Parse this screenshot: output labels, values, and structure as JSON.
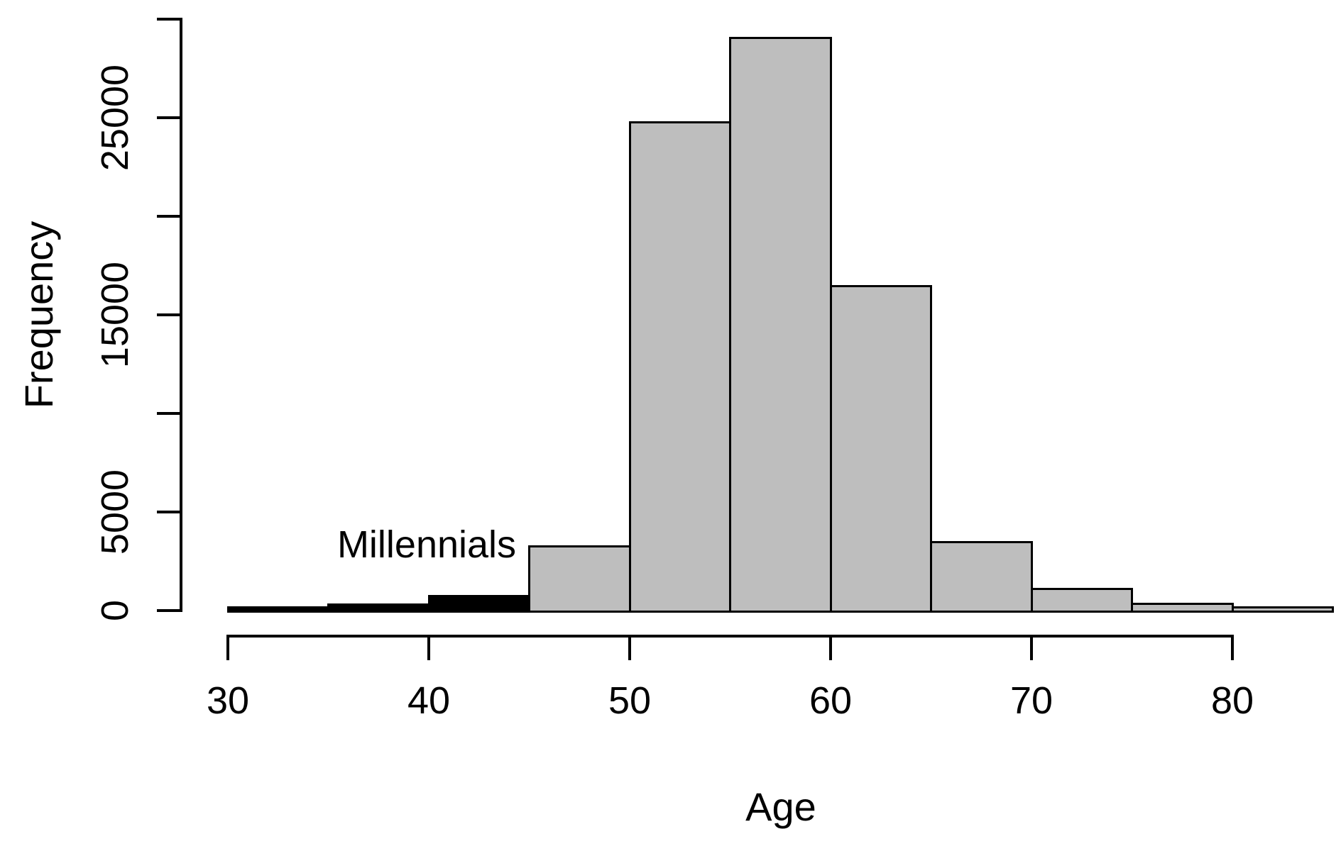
{
  "chart_data": {
    "type": "bar",
    "subtype": "histogram",
    "title": "",
    "xlabel": "Age",
    "ylabel": "Frequency",
    "xlim": [
      30,
      85
    ],
    "ylim": [
      0,
      30000
    ],
    "grid": false,
    "legend": false,
    "background": "#FFFFFF",
    "bar_border_color": "#000000",
    "group_colors": {
      "millennials": "#000000",
      "other": "#BEBEBE"
    },
    "bin_width": 5,
    "bins": [
      {
        "start": 30,
        "end": 35,
        "range": "30-35",
        "frequency": 100,
        "group": "millennials"
      },
      {
        "start": 35,
        "end": 40,
        "range": "35-40",
        "frequency": 250,
        "group": "millennials"
      },
      {
        "start": 40,
        "end": 45,
        "range": "40-45",
        "frequency": 700,
        "group": "millennials"
      },
      {
        "start": 45,
        "end": 50,
        "range": "45-50",
        "frequency": 3200,
        "group": "other"
      },
      {
        "start": 50,
        "end": 55,
        "range": "50-55",
        "frequency": 24700,
        "group": "other"
      },
      {
        "start": 55,
        "end": 60,
        "range": "55-60",
        "frequency": 29000,
        "group": "other"
      },
      {
        "start": 60,
        "end": 65,
        "range": "60-65",
        "frequency": 16400,
        "group": "other"
      },
      {
        "start": 65,
        "end": 70,
        "range": "65-70",
        "frequency": 3400,
        "group": "other"
      },
      {
        "start": 70,
        "end": 75,
        "range": "70-75",
        "frequency": 1050,
        "group": "other"
      },
      {
        "start": 75,
        "end": 80,
        "range": "75-80",
        "frequency": 300,
        "group": "other"
      },
      {
        "start": 80,
        "end": 85,
        "range": "80-85",
        "frequency": 100,
        "group": "other"
      }
    ],
    "x_ticks": [
      {
        "value": 30,
        "label": "30"
      },
      {
        "value": 40,
        "label": "40"
      },
      {
        "value": 50,
        "label": "50"
      },
      {
        "value": 60,
        "label": "60"
      },
      {
        "value": 70,
        "label": "70"
      },
      {
        "value": 80,
        "label": "80"
      }
    ],
    "y_ticks": [
      {
        "value": 0,
        "label": "0"
      },
      {
        "value": 5000,
        "label": "5000"
      },
      {
        "value": 10000,
        "label": ""
      },
      {
        "value": 15000,
        "label": "15000"
      },
      {
        "value": 20000,
        "label": ""
      },
      {
        "value": 25000,
        "label": "25000"
      },
      {
        "value": 30000,
        "label": ""
      }
    ],
    "annotation": {
      "text": "Millennials",
      "x": 40,
      "y": 3350
    }
  }
}
